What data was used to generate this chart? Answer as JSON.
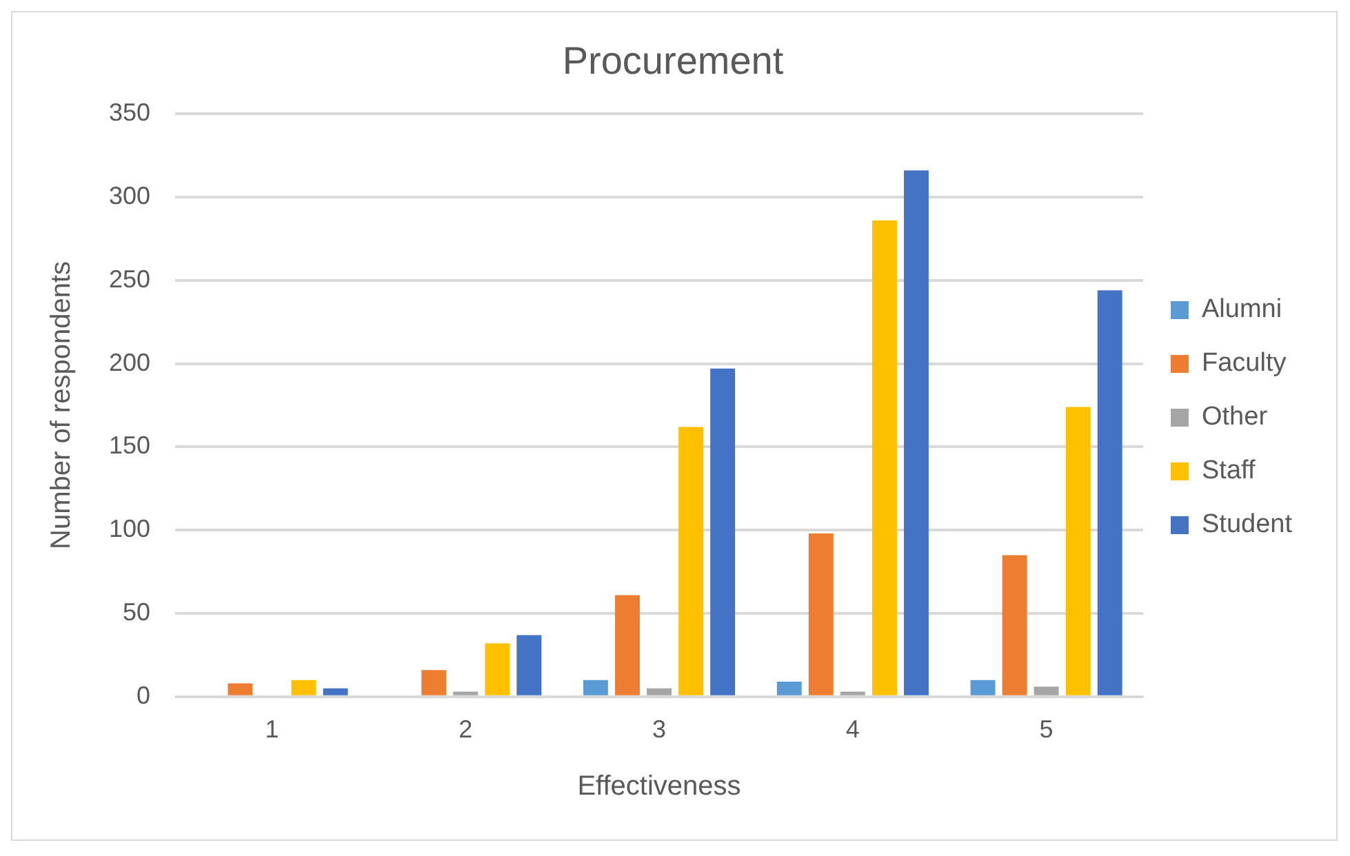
{
  "chart_data": {
    "type": "bar",
    "title": "Procurement",
    "xlabel": "Effectiveness",
    "ylabel": "Number of respondents",
    "categories": [
      "1",
      "2",
      "3",
      "4",
      "5"
    ],
    "series": [
      {
        "name": "Alumni",
        "color": "#5b9bd5",
        "values": [
          0,
          0,
          10,
          9,
          10
        ]
      },
      {
        "name": "Faculty",
        "color": "#ed7d31",
        "values": [
          8,
          16,
          61,
          98,
          85
        ]
      },
      {
        "name": "Other",
        "color": "#a5a5a5",
        "values": [
          0,
          3,
          5,
          3,
          6
        ]
      },
      {
        "name": "Staff",
        "color": "#ffc000",
        "values": [
          10,
          32,
          162,
          286,
          174
        ]
      },
      {
        "name": "Student",
        "color": "#4472c4",
        "values": [
          5,
          37,
          197,
          316,
          244
        ]
      }
    ],
    "ylim": [
      0,
      350
    ],
    "yticks": [
      0,
      50,
      100,
      150,
      200,
      250,
      300,
      350
    ],
    "grid": "y",
    "legend": "right"
  }
}
